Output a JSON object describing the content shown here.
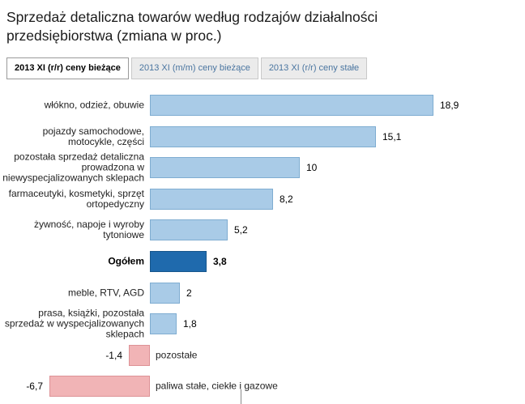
{
  "title": "Sprzedaż detaliczna towarów według rodzajów działalności przedsiębiorstwa (zmiana w proc.)",
  "tabs": [
    {
      "label": "2013 XI (r/r) ceny bieżące",
      "active": true
    },
    {
      "label": "2013 XI (m/m) ceny bieżące",
      "active": false
    },
    {
      "label": "2013 XI (r/r) ceny stałe",
      "active": false
    }
  ],
  "chart_data": {
    "type": "bar",
    "orientation": "horizontal",
    "title": "Sprzedaż detaliczna towarów według rodzajów działalności przedsiębiorstwa (zmiana w proc.)",
    "unit": "proc.",
    "xlim": [
      -8,
      20
    ],
    "grid": false,
    "legend": "none",
    "categories": [
      "włókno, odzież, obuwie",
      "pojazdy samochodowe, motocykle, części",
      "pozostała sprzedaż detaliczna prowadzona w niewyspecjalizowanych sklepach",
      "farmaceutyki, kosmetyki, sprzęt ortopedyczny",
      "żywność, napoje i wyroby tytoniowe",
      "Ogółem",
      "meble, RTV, AGD",
      "prasa, książki, pozostała sprzedaż w wyspecjalizowanych sklepach",
      "pozostałe",
      "paliwa stałe, ciekłe i gazowe"
    ],
    "values": [
      18.9,
      15.1,
      10,
      8.2,
      5.2,
      3.8,
      2,
      1.8,
      -1.4,
      -6.7
    ],
    "value_labels": [
      "18,9",
      "15,1",
      "10",
      "8,2",
      "5,2",
      "3,8",
      "2",
      "1,8",
      "-1,4",
      "-6,7"
    ],
    "emphasis_index": 5,
    "colors": {
      "positive_fill": "#a9cbe7",
      "positive_border": "#7fadd1",
      "emphasis_fill": "#1f6aad",
      "emphasis_border": "#17568c",
      "negative_fill": "#f1b4b6",
      "negative_border": "#dd9296"
    }
  }
}
